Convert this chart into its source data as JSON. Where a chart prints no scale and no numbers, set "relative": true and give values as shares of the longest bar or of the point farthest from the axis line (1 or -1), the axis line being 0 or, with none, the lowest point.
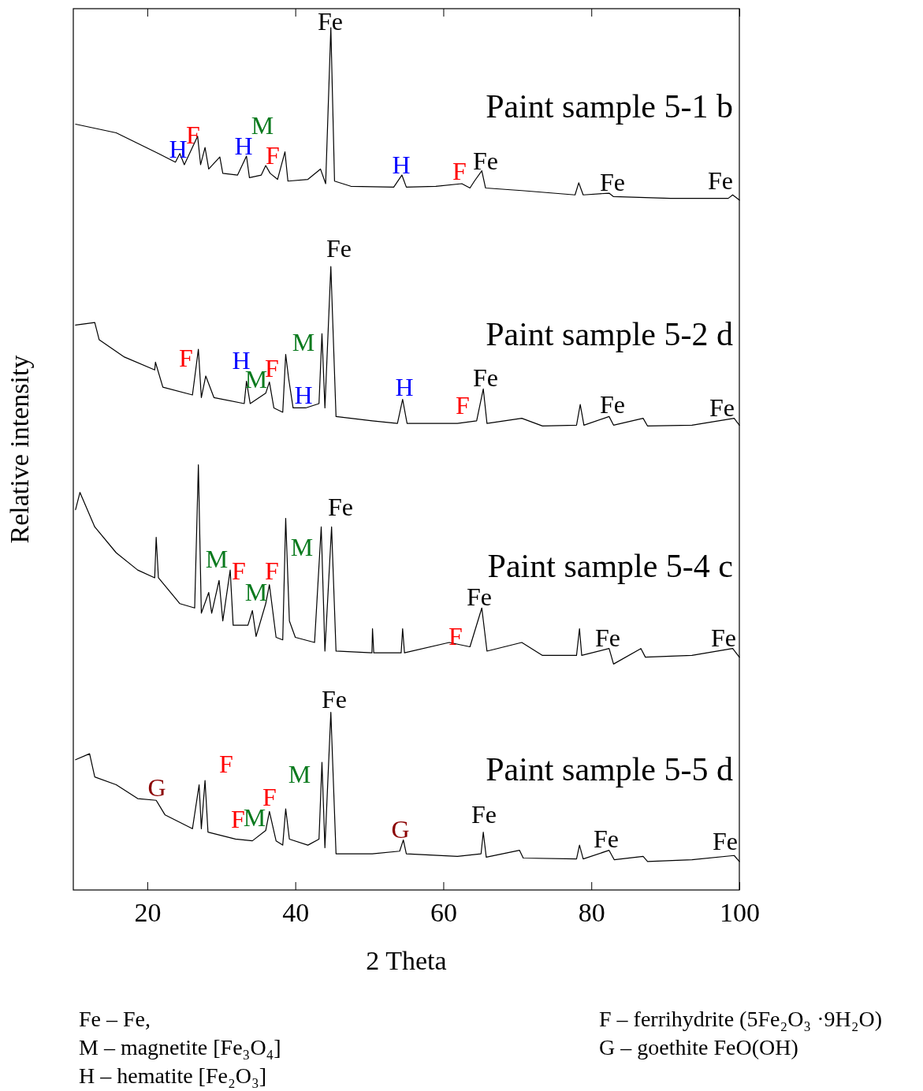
{
  "chart_data": {
    "type": "line",
    "relative": true,
    "xlabel": "2 Theta",
    "ylabel": "Relative intensity",
    "xlim": [
      10,
      100
    ],
    "xticks": [
      20,
      40,
      60,
      80,
      100
    ],
    "grid": false,
    "legend": false,
    "marker": "none",
    "line_style": "solid",
    "series": [
      {
        "name": "Paint sample 5-1 b",
        "color": "#000000",
        "x": [
          10.3,
          15.8,
          21.5,
          23.8,
          24.4,
          25.0,
          26.8,
          27.2,
          27.8,
          28.3,
          29.8,
          30.2,
          32.2,
          33.4,
          33.8,
          35.4,
          36.0,
          36.6,
          37.6,
          38.6,
          39.0,
          41.7,
          43.4,
          44.1,
          44.8,
          45.3,
          47.5,
          53.3,
          54.4,
          55.0,
          59.0,
          62.5,
          63.6,
          64.2,
          65.2,
          65.7,
          70.6,
          77.8,
          78.3,
          78.9,
          82.4,
          83.0,
          90.7,
          98.5,
          99.1,
          100
        ],
        "values": [
          0.888,
          0.878,
          0.854,
          0.844,
          0.854,
          0.841,
          0.874,
          0.841,
          0.861,
          0.836,
          0.85,
          0.831,
          0.829,
          0.851,
          0.826,
          0.829,
          0.84,
          0.831,
          0.824,
          0.856,
          0.822,
          0.824,
          0.836,
          0.819,
          1.0,
          0.822,
          0.816,
          0.815,
          0.829,
          0.815,
          0.816,
          0.819,
          0.814,
          0.822,
          0.834,
          0.814,
          0.811,
          0.806,
          0.82,
          0.806,
          0.808,
          0.804,
          0.802,
          0.802,
          0.806,
          0.8
        ]
      },
      {
        "name": "Paint sample 5-2 d",
        "color": "#000000",
        "x": [
          10.3,
          12.9,
          13.5,
          16.9,
          21.0,
          21.1,
          22.1,
          26.1,
          26.9,
          27.3,
          27.9,
          29.0,
          33.1,
          33.4,
          33.9,
          36.0,
          36.5,
          37.1,
          38.3,
          38.7,
          39.1,
          39.7,
          41.4,
          43.2,
          43.6,
          44.0,
          44.8,
          45.5,
          50.4,
          53.8,
          54.5,
          55.1,
          61.9,
          64.5,
          65.4,
          65.9,
          70.6,
          73.4,
          78.0,
          78.5,
          79.0,
          82.4,
          83.0,
          87.0,
          87.6,
          93.6,
          99.3,
          100
        ],
        "values": [
          0.655,
          0.658,
          0.638,
          0.618,
          0.603,
          0.612,
          0.583,
          0.574,
          0.627,
          0.571,
          0.596,
          0.571,
          0.564,
          0.59,
          0.564,
          0.576,
          0.589,
          0.559,
          0.554,
          0.621,
          0.593,
          0.559,
          0.559,
          0.564,
          0.645,
          0.559,
          0.723,
          0.549,
          0.544,
          0.541,
          0.569,
          0.541,
          0.541,
          0.544,
          0.581,
          0.541,
          0.547,
          0.538,
          0.539,
          0.563,
          0.539,
          0.549,
          0.539,
          0.547,
          0.538,
          0.539,
          0.547,
          0.539
        ]
      },
      {
        "name": "Paint sample 5-4 c",
        "color": "#000000",
        "x": [
          10.3,
          10.9,
          12.9,
          15.8,
          18.7,
          21.0,
          21.2,
          21.5,
          24.4,
          26.4,
          26.9,
          27.3,
          28.3,
          28.7,
          29.7,
          30.2,
          31.2,
          31.6,
          33.6,
          34.2,
          34.7,
          36.0,
          36.5,
          37.4,
          38.3,
          38.7,
          39.2,
          40.0,
          42.6,
          43.5,
          44.0,
          44.9,
          45.5,
          50.35,
          50.43,
          50.6,
          54.3,
          54.5,
          54.75,
          60.8,
          63.6,
          65.2,
          65.9,
          70.6,
          73.4,
          78.0,
          78.4,
          78.7,
          82.4,
          83.0,
          86.7,
          87.3,
          93.6,
          99.1,
          100
        ],
        "values": [
          0.441,
          0.461,
          0.421,
          0.391,
          0.371,
          0.362,
          0.409,
          0.362,
          0.332,
          0.327,
          0.493,
          0.321,
          0.345,
          0.321,
          0.359,
          0.312,
          0.371,
          0.307,
          0.307,
          0.324,
          0.294,
          0.332,
          0.354,
          0.293,
          0.29,
          0.431,
          0.312,
          0.293,
          0.287,
          0.421,
          0.277,
          0.421,
          0.277,
          0.275,
          0.303,
          0.275,
          0.275,
          0.303,
          0.275,
          0.287,
          0.282,
          0.327,
          0.277,
          0.287,
          0.272,
          0.272,
          0.303,
          0.272,
          0.28,
          0.262,
          0.28,
          0.27,
          0.272,
          0.28,
          0.27
        ]
      },
      {
        "name": "Paint sample 5-5 d",
        "color": "#000000",
        "x": [
          10.3,
          12.2,
          12.9,
          15.8,
          18.7,
          21.2,
          22.4,
          26.1,
          27.0,
          27.3,
          27.8,
          28.2,
          31.9,
          34.2,
          36.0,
          36.5,
          37.4,
          38.3,
          38.7,
          39.2,
          41.7,
          43.2,
          43.6,
          44.0,
          44.8,
          45.5,
          50.4,
          54.1,
          54.6,
          55.0,
          61.9,
          65.1,
          65.4,
          65.8,
          70.3,
          70.8,
          78.0,
          78.4,
          78.9,
          82.4,
          83.1,
          87.0,
          87.6,
          93.6,
          99.3,
          100
        ],
        "values": [
          0.151,
          0.158,
          0.131,
          0.122,
          0.106,
          0.104,
          0.087,
          0.071,
          0.122,
          0.071,
          0.127,
          0.067,
          0.059,
          0.057,
          0.069,
          0.091,
          0.057,
          0.052,
          0.094,
          0.059,
          0.052,
          0.059,
          0.148,
          0.049,
          0.206,
          0.042,
          0.042,
          0.045,
          0.058,
          0.042,
          0.039,
          0.042,
          0.067,
          0.038,
          0.046,
          0.037,
          0.036,
          0.052,
          0.036,
          0.046,
          0.035,
          0.039,
          0.033,
          0.035,
          0.04,
          0.033
        ]
      }
    ],
    "annotations": [
      "Fe",
      "F",
      "H",
      "M",
      "H",
      "F",
      "H",
      "F",
      "Fe",
      "Fe",
      "Fe",
      "Fe",
      "F",
      "H",
      "M",
      "F",
      "M",
      "H",
      "H",
      "F",
      "Fe",
      "Fe",
      "Fe",
      "Fe",
      "M",
      "F",
      "F",
      "M",
      "M",
      "F",
      "Fe",
      "Fe",
      "Fe",
      "Fe",
      "F",
      "G",
      "M",
      "F",
      "F",
      "M",
      "G",
      "Fe",
      "Fe",
      "Fe",
      "Fe – Fe,",
      "M – magnetite [Fe₃O₄]",
      "H – hematite [Fe₂O₃]",
      "F – ferrihydrite (5Fe₂O₃ ·9H₂O)",
      "G – goethite FeO(OH)"
    ]
  }
}
